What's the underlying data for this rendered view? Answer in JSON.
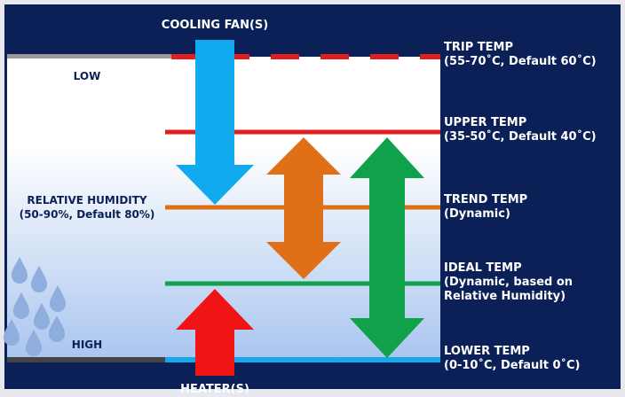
{
  "colors": {
    "frame": "#0b2057",
    "chamber_top": "#ffffff",
    "chamber_bottom": "#a9c5ef",
    "label_dark": "#0b2057",
    "label_light": "#ffffff",
    "trip": "#e01e1e",
    "upper": "#e01e1e",
    "trend": "#e07018",
    "ideal": "#0fa24a",
    "lower": "#16a8e8",
    "fan_arrow": "#12aaee",
    "heater_arrow": "#f01414",
    "orange_arrow": "#e07018",
    "green_arrow": "#0fa24a",
    "drops": "#8faede"
  },
  "labels": {
    "cooling_fan": "COOLING FAN(S)",
    "heater": "HEATER(S)",
    "low": "LOW",
    "high": "HIGH",
    "humidity_line1": "RELATIVE HUMIDITY",
    "humidity_line2": "(50-90%, Default 80%)"
  },
  "levels": [
    {
      "key": "trip",
      "title": "TRIP TEMP",
      "sub": [
        "(55-70˚C, Default 60˚C)"
      ]
    },
    {
      "key": "upper",
      "title": "UPPER TEMP",
      "sub": [
        "(35-50˚C, Default 40˚C)"
      ]
    },
    {
      "key": "trend",
      "title": "TREND TEMP",
      "sub": [
        "(Dynamic)"
      ]
    },
    {
      "key": "ideal",
      "title": "IDEAL TEMP",
      "sub": [
        "(Dynamic, based on",
        "Relative Humidity)"
      ]
    },
    {
      "key": "lower",
      "title": "LOWER TEMP",
      "sub": [
        "(0-10˚C, Default 0˚C)"
      ]
    }
  ]
}
